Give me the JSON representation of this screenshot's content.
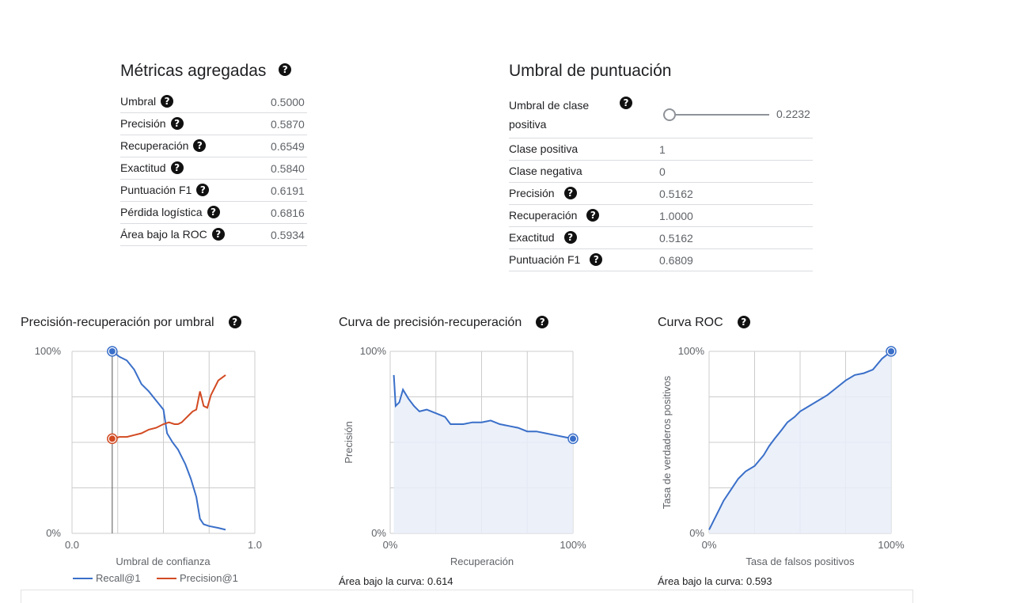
{
  "aggregate": {
    "title": "Métricas agregadas",
    "rows": [
      {
        "label": "Umbral",
        "value": "0.5000"
      },
      {
        "label": "Precisión",
        "value": "0.5870"
      },
      {
        "label": "Recuperación",
        "value": "0.6549"
      },
      {
        "label": "Exactitud",
        "value": "0.5840"
      },
      {
        "label": "Puntuación F1",
        "value": "0.6191"
      },
      {
        "label": "Pérdida logística",
        "value": "0.6816"
      },
      {
        "label": "Área bajo la ROC",
        "value": "0.5934"
      }
    ]
  },
  "threshold": {
    "title": "Umbral de puntuación",
    "slider_label_line1": "Umbral de clase",
    "slider_label_line2": "positiva",
    "slider_value": "0.2232",
    "slider_fraction": 0.0,
    "rows": [
      {
        "label": "Clase positiva",
        "value": "1",
        "help": false
      },
      {
        "label": "Clase negativa",
        "value": "0",
        "help": false
      },
      {
        "label": "Precisión",
        "value": "0.5162",
        "help": true
      },
      {
        "label": "Recuperación",
        "value": "1.0000",
        "help": true
      },
      {
        "label": "Exactitud",
        "value": "0.5162",
        "help": true
      },
      {
        "label": "Puntuación F1",
        "value": "0.6809",
        "help": true
      }
    ]
  },
  "help_glyph": "?",
  "colors": {
    "blue": "#3a6fc9",
    "orange": "#d24a22",
    "fill": "#e8edf8",
    "grid": "#cccccc"
  },
  "charts": {
    "pr_threshold": {
      "title": "Precisión-recuperación por umbral",
      "xlabel": "Umbral de confianza",
      "ytick_top": "100%",
      "ytick_bottom": "0%",
      "xtick_left": "0.0",
      "xtick_right": "1.0",
      "legend": [
        "Recall@1",
        "Precision@1"
      ]
    },
    "pr_curve": {
      "title": "Curva de precisión-recuperación",
      "xlabel": "Recuperación",
      "ylabel": "Precisión",
      "ytick_top": "100%",
      "ytick_bottom": "0%",
      "xtick_left": "0%",
      "xtick_right": "100%",
      "auc": "Área bajo la curva: 0.614"
    },
    "roc": {
      "title": "Curva ROC",
      "xlabel": "Tasa de falsos positivos",
      "ylabel": "Tasa de verdaderos positivos",
      "ytick_top": "100%",
      "ytick_bottom": "0%",
      "xtick_left": "0%",
      "xtick_right": "100%",
      "auc": "Área bajo la curva: 0.593"
    }
  },
  "chart_data": [
    {
      "type": "line",
      "title": "Precisión-recuperación por umbral",
      "xlabel": "Umbral de confianza",
      "xlim": [
        0,
        1
      ],
      "ylim": [
        0,
        1
      ],
      "marker_x": 0.22,
      "series": [
        {
          "name": "Recall@1",
          "x": [
            0.22,
            0.26,
            0.3,
            0.34,
            0.38,
            0.42,
            0.46,
            0.5,
            0.52,
            0.55,
            0.58,
            0.62,
            0.65,
            0.68,
            0.7,
            0.72,
            0.75,
            0.8,
            0.84
          ],
          "y": [
            1.0,
            0.97,
            0.95,
            0.9,
            0.82,
            0.78,
            0.73,
            0.68,
            0.55,
            0.5,
            0.46,
            0.38,
            0.3,
            0.2,
            0.08,
            0.05,
            0.04,
            0.03,
            0.02
          ]
        },
        {
          "name": "Precision@1",
          "x": [
            0.22,
            0.26,
            0.3,
            0.34,
            0.38,
            0.42,
            0.46,
            0.5,
            0.53,
            0.56,
            0.58,
            0.6,
            0.62,
            0.64,
            0.66,
            0.68,
            0.7,
            0.72,
            0.74,
            0.76,
            0.78,
            0.8,
            0.84
          ],
          "y": [
            0.52,
            0.53,
            0.53,
            0.54,
            0.55,
            0.57,
            0.58,
            0.6,
            0.61,
            0.6,
            0.6,
            0.61,
            0.63,
            0.65,
            0.67,
            0.68,
            0.78,
            0.7,
            0.69,
            0.76,
            0.8,
            0.84,
            0.87
          ]
        }
      ]
    },
    {
      "type": "area",
      "title": "Curva de precisión-recuperación",
      "xlabel": "Recuperación",
      "ylabel": "Precisión",
      "xlim": [
        0,
        1
      ],
      "ylim": [
        0,
        1
      ],
      "series": [
        {
          "name": "",
          "x": [
            0.02,
            0.03,
            0.05,
            0.07,
            0.1,
            0.13,
            0.16,
            0.2,
            0.25,
            0.3,
            0.33,
            0.4,
            0.45,
            0.5,
            0.55,
            0.6,
            0.65,
            0.7,
            0.75,
            0.8,
            0.85,
            0.9,
            0.95,
            1.0
          ],
          "y": [
            0.87,
            0.7,
            0.72,
            0.79,
            0.74,
            0.7,
            0.67,
            0.68,
            0.66,
            0.64,
            0.6,
            0.6,
            0.61,
            0.61,
            0.62,
            0.6,
            0.59,
            0.58,
            0.56,
            0.56,
            0.55,
            0.54,
            0.53,
            0.52
          ]
        }
      ],
      "auc": 0.614
    },
    {
      "type": "area",
      "title": "Curva ROC",
      "xlabel": "Tasa de falsos positivos",
      "ylabel": "Tasa de verdaderos positivos",
      "xlim": [
        0,
        1
      ],
      "ylim": [
        0,
        1
      ],
      "series": [
        {
          "name": "",
          "x": [
            0.0,
            0.02,
            0.05,
            0.08,
            0.12,
            0.16,
            0.2,
            0.25,
            0.3,
            0.33,
            0.36,
            0.4,
            0.43,
            0.47,
            0.5,
            0.55,
            0.6,
            0.65,
            0.7,
            0.75,
            0.8,
            0.85,
            0.9,
            0.95,
            1.0
          ],
          "y": [
            0.02,
            0.06,
            0.12,
            0.18,
            0.24,
            0.3,
            0.34,
            0.37,
            0.43,
            0.48,
            0.52,
            0.57,
            0.61,
            0.64,
            0.67,
            0.7,
            0.73,
            0.76,
            0.8,
            0.84,
            0.87,
            0.88,
            0.9,
            0.96,
            1.0
          ]
        }
      ],
      "auc": 0.593
    }
  ]
}
